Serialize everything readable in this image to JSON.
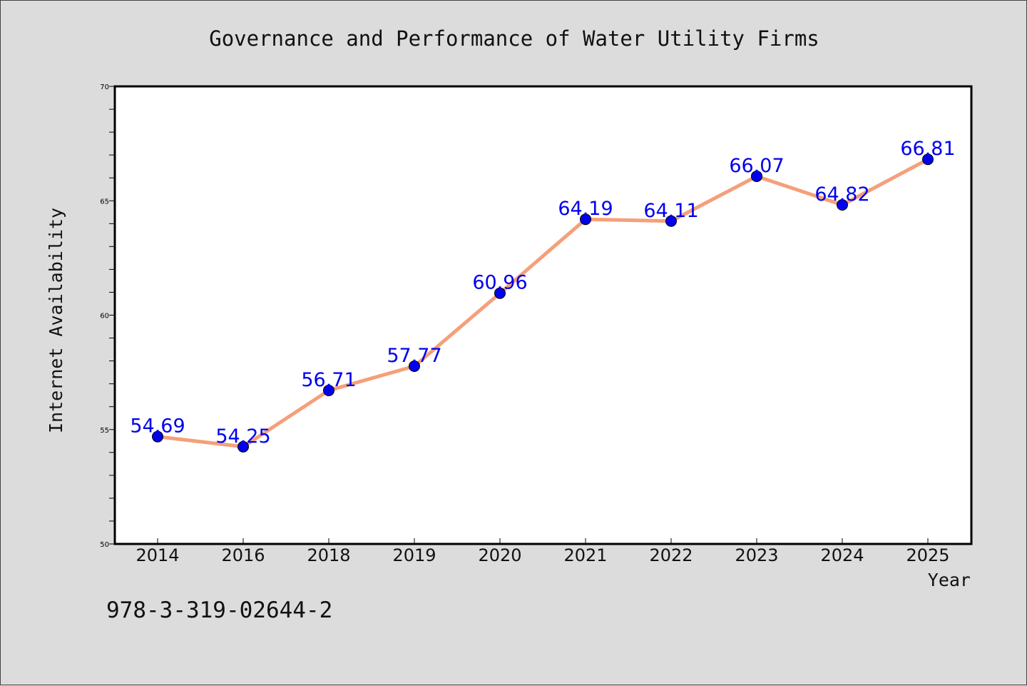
{
  "chart_data": {
    "type": "line",
    "title": "Governance and Performance of Water Utility Firms",
    "xlabel": "Year",
    "ylabel": "Internet Availability",
    "categories": [
      "2014",
      "2016",
      "2018",
      "2019",
      "2020",
      "2021",
      "2022",
      "2023",
      "2024",
      "2025"
    ],
    "series": [
      {
        "values": [
          54.69,
          54.25,
          56.71,
          57.77,
          60.96,
          64.19,
          64.11,
          66.07,
          64.82,
          66.81
        ]
      }
    ],
    "ylim": [
      50,
      70
    ],
    "yticks": [
      50,
      55,
      60,
      65,
      70
    ],
    "grid": false,
    "legend": "none",
    "line_color": "#f4a07a",
    "marker_color": "#0000ee",
    "label_color": "#0000ee"
  },
  "annotation": {
    "isbn": "978-3-319-02644-2"
  }
}
